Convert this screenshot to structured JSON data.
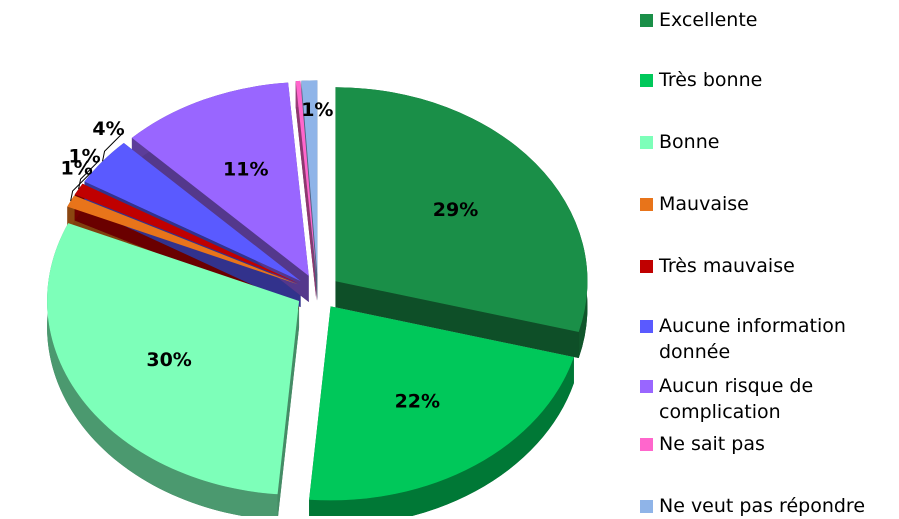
{
  "chart_data": {
    "type": "pie",
    "categories": [
      "Excellente",
      "Très bonne",
      "Bonne",
      "Mauvaise",
      "Très mauvaise",
      "Aucune information donnée",
      "Aucun risque de complication",
      "Ne sait pas",
      "Ne veut pas répondre"
    ],
    "values": [
      29,
      22,
      30,
      1,
      1,
      4,
      11,
      0.3,
      1
    ],
    "value_labels": [
      "29%",
      "22%",
      "30%",
      "1%",
      "1%",
      "4%",
      "11%",
      null,
      "1%"
    ],
    "colors": [
      "#1a8f48",
      "#00c85a",
      "#7dffb9",
      "#e8741a",
      "#c00000",
      "#5a5aff",
      "#9966ff",
      "#ff66cc",
      "#8fb4e8"
    ],
    "legend": "right"
  }
}
